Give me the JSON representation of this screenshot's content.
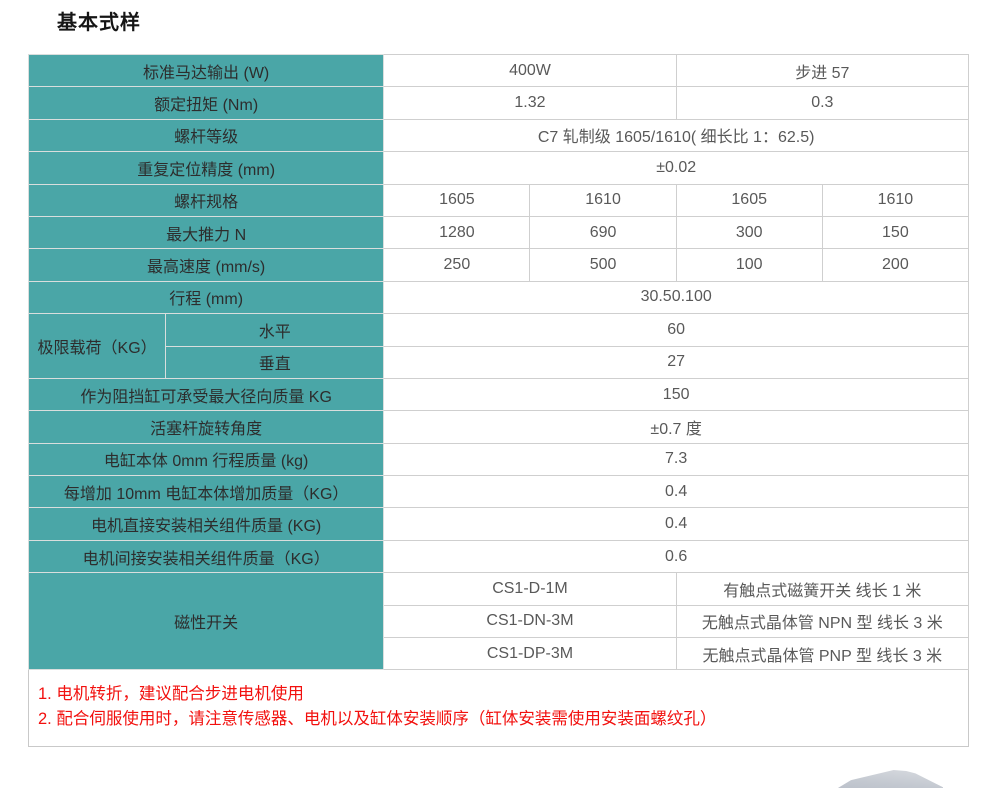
{
  "title": "基本式样",
  "colors": {
    "header_teal": "#4AA6A7",
    "note_red": "#F2100E",
    "label_text": "#2D2D2D",
    "value_text": "#595959",
    "grid_line": "#CFCFCF"
  },
  "table": {
    "rows": [
      {
        "cells": [
          {
            "text": "标准马达输出 (W)",
            "type": "label",
            "colspan": 2
          },
          {
            "text": "400W",
            "colspan": 2
          },
          {
            "text": "步进 57",
            "colspan": 2
          }
        ]
      },
      {
        "cells": [
          {
            "text": "额定扭矩 (Nm)",
            "type": "label",
            "colspan": 2
          },
          {
            "text": "1.32",
            "colspan": 2
          },
          {
            "text": "0.3",
            "colspan": 2
          }
        ]
      },
      {
        "cells": [
          {
            "text": "螺杆等级",
            "type": "label",
            "colspan": 2
          },
          {
            "text": "C7 轧制级 1605/1610( 细长比 1：62.5)",
            "colspan": 4
          }
        ]
      },
      {
        "cells": [
          {
            "text": "重复定位精度 (mm)",
            "type": "label",
            "colspan": 2
          },
          {
            "text": "±0.02",
            "colspan": 4
          }
        ]
      },
      {
        "cells": [
          {
            "text": "螺杆规格",
            "type": "label",
            "colspan": 2
          },
          {
            "text": "1605"
          },
          {
            "text": "1610"
          },
          {
            "text": "1605"
          },
          {
            "text": "1610"
          }
        ]
      },
      {
        "cells": [
          {
            "text": "最大推力 N",
            "type": "label",
            "colspan": 2
          },
          {
            "text": "1280"
          },
          {
            "text": "690"
          },
          {
            "text": "300"
          },
          {
            "text": "150"
          }
        ]
      },
      {
        "cells": [
          {
            "text": "最高速度 (mm/s)",
            "type": "label",
            "colspan": 2
          },
          {
            "text": "250"
          },
          {
            "text": "500"
          },
          {
            "text": "100"
          },
          {
            "text": "200"
          }
        ]
      },
      {
        "cells": [
          {
            "text": "行程 (mm)",
            "type": "label",
            "colspan": 2
          },
          {
            "text": "30.50.100",
            "colspan": 4
          }
        ]
      },
      {
        "cells": [
          {
            "text": "极限载荷（KG）",
            "type": "label",
            "rowspan": 2
          },
          {
            "text": "水平",
            "type": "label"
          },
          {
            "text": "60",
            "colspan": 4
          }
        ]
      },
      {
        "cells": [
          {
            "text": "垂直",
            "type": "label"
          },
          {
            "text": "27",
            "colspan": 4
          }
        ]
      },
      {
        "cells": [
          {
            "text": "作为阻挡缸可承受最大径向质量 KG",
            "type": "label",
            "colspan": 2
          },
          {
            "text": "150",
            "colspan": 4
          }
        ]
      },
      {
        "cells": [
          {
            "text": "活塞杆旋转角度",
            "type": "label",
            "colspan": 2
          },
          {
            "text": "±0.7 度",
            "colspan": 4
          }
        ]
      },
      {
        "cells": [
          {
            "text": "电缸本体 0mm 行程质量 (kg)",
            "type": "label",
            "colspan": 2
          },
          {
            "text": "7.3",
            "colspan": 4
          }
        ]
      },
      {
        "cells": [
          {
            "text": "每增加 10mm 电缸本体增加质量（KG）",
            "type": "label",
            "colspan": 2
          },
          {
            "text": "0.4",
            "colspan": 4
          }
        ]
      },
      {
        "cells": [
          {
            "text": "电机直接安装相关组件质量 (KG)",
            "type": "label",
            "colspan": 2
          },
          {
            "text": "0.4",
            "colspan": 4
          }
        ]
      },
      {
        "cells": [
          {
            "text": "电机间接安装相关组件质量（KG）",
            "type": "label",
            "colspan": 2
          },
          {
            "text": "0.6",
            "colspan": 4
          }
        ]
      },
      {
        "cells": [
          {
            "text": "磁性开关",
            "type": "label",
            "colspan": 2,
            "rowspan": 3
          },
          {
            "text": "CS1-D-1M",
            "colspan": 2
          },
          {
            "text": "有触点式磁簧开关 线长 1 米",
            "colspan": 2
          }
        ]
      },
      {
        "cells": [
          {
            "text": "CS1-DN-3M",
            "colspan": 2
          },
          {
            "text": "无触点式晶体管 NPN 型 线长 3 米",
            "colspan": 2
          }
        ]
      },
      {
        "cells": [
          {
            "text": "CS1-DP-3M",
            "colspan": 2
          },
          {
            "text": "无触点式晶体管 PNP 型 线长 3 米",
            "colspan": 2
          }
        ]
      }
    ]
  },
  "notes": [
    "1. 电机转折，建议配合步进电机使用",
    "2. 配合伺服使用时，请注意传感器、电机以及缸体安装顺序（缸体安装需使用安装面螺纹孔）"
  ]
}
